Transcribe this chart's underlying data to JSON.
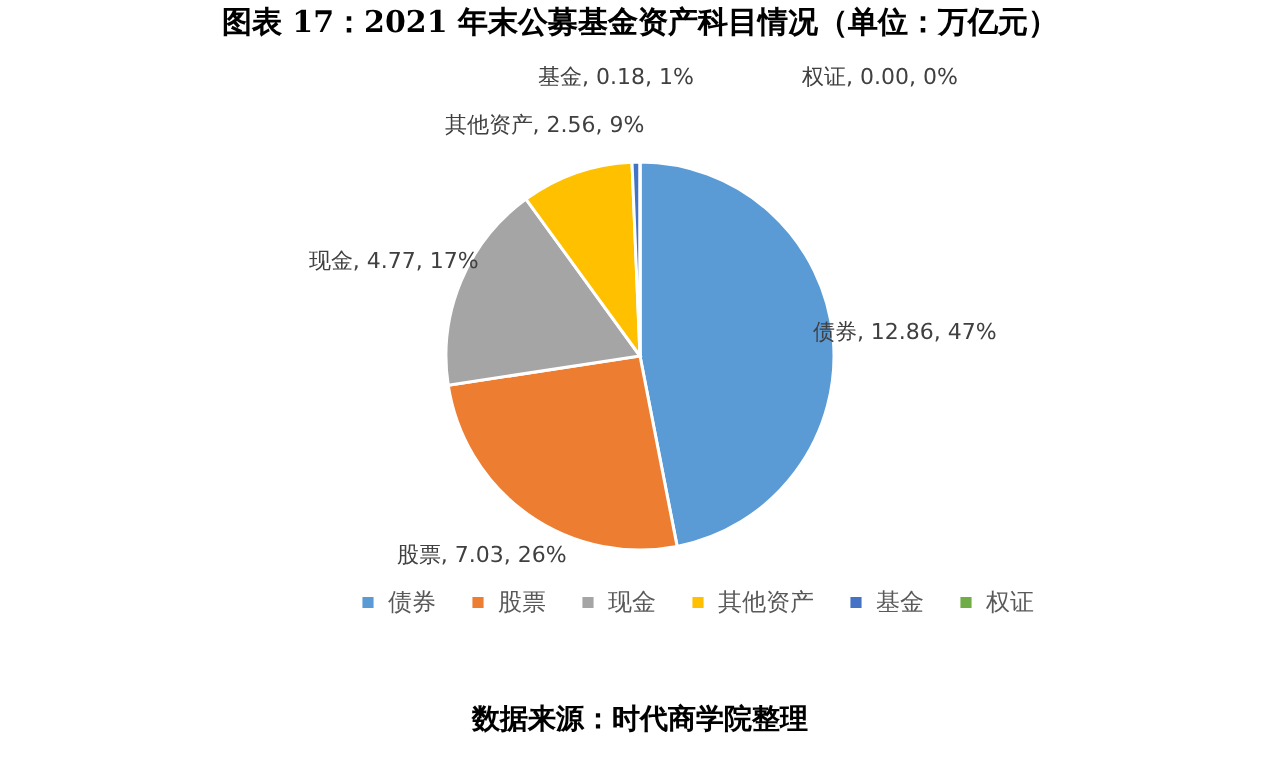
{
  "chart_data": {
    "type": "pie",
    "title": "图表 17：2021 年末公募基金资产科目情况（单位：万亿元）",
    "categories": [
      "债券",
      "股票",
      "现金",
      "其他资产",
      "基金",
      "权证"
    ],
    "values": [
      12.86,
      7.03,
      4.77,
      2.56,
      0.18,
      0.0
    ],
    "value_labels": [
      "债券, 12.86, 47%",
      "股票, 7.03, 26%",
      "现金, 4.77, 17%",
      "其他资产, 2.56, 9%",
      "基金, 0.18, 1%",
      "权证, 0.00, 0%"
    ],
    "colors": [
      "#5b9bd5",
      "#ed7d31",
      "#a5a5a5",
      "#ffc000",
      "#4472c4",
      "#70ad47"
    ],
    "legend": "bottom",
    "annotations": [
      "数据来源：时代商学院整理"
    ]
  }
}
